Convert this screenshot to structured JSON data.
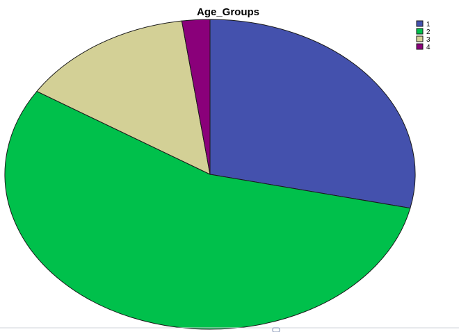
{
  "chart_data": {
    "type": "pie",
    "title": "Age_Groups",
    "legend_position": "top-right",
    "categories": [
      "1",
      "2",
      "3",
      "4"
    ],
    "values": [
      28.5,
      55.5,
      13.8,
      2.2
    ],
    "colors": [
      "#4451ad",
      "#00c04b",
      "#d3d096",
      "#8a007a"
    ],
    "start_angle_deg": 0,
    "direction": "clockwise"
  }
}
